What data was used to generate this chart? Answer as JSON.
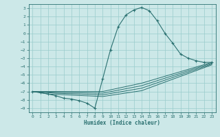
{
  "xlabel": "Humidex (Indice chaleur)",
  "bg_color": "#cce8e8",
  "grid_color": "#99cccc",
  "line_color": "#2a7070",
  "xlim": [
    -0.5,
    23.5
  ],
  "ylim": [
    -9.5,
    3.5
  ],
  "xticks": [
    0,
    1,
    2,
    3,
    4,
    5,
    6,
    7,
    8,
    9,
    10,
    11,
    12,
    13,
    14,
    15,
    16,
    17,
    18,
    19,
    20,
    21,
    22,
    23
  ],
  "yticks": [
    3,
    2,
    1,
    0,
    -1,
    -2,
    -3,
    -4,
    -5,
    -6,
    -7,
    -8,
    -9
  ],
  "series0_x": [
    0,
    1,
    2,
    3,
    4,
    5,
    6,
    7,
    8,
    9,
    10,
    11,
    12,
    13,
    14,
    15,
    16,
    17,
    18,
    19,
    20,
    21,
    22,
    23
  ],
  "series0_y": [
    -7,
    -7.1,
    -7.3,
    -7.5,
    -7.8,
    -7.9,
    -8.1,
    -8.4,
    -9.0,
    -5.5,
    -2.0,
    0.8,
    2.2,
    2.8,
    3.1,
    2.7,
    1.5,
    0.0,
    -1.2,
    -2.5,
    -3.0,
    -3.3,
    -3.5,
    -3.5
  ],
  "series1_x": [
    0,
    3,
    9,
    14,
    23
  ],
  "series1_y": [
    -7,
    -7.0,
    -7.0,
    -6.0,
    -3.5
  ],
  "series2_x": [
    0,
    3,
    9,
    14,
    23
  ],
  "series2_y": [
    -7,
    -7.1,
    -7.2,
    -6.3,
    -3.6
  ],
  "series3_x": [
    0,
    3,
    9,
    14,
    23
  ],
  "series3_y": [
    -7,
    -7.2,
    -7.4,
    -6.6,
    -3.7
  ],
  "series4_x": [
    0,
    2,
    9,
    14,
    23
  ],
  "series4_y": [
    -7,
    -7.3,
    -7.6,
    -6.9,
    -3.8
  ]
}
